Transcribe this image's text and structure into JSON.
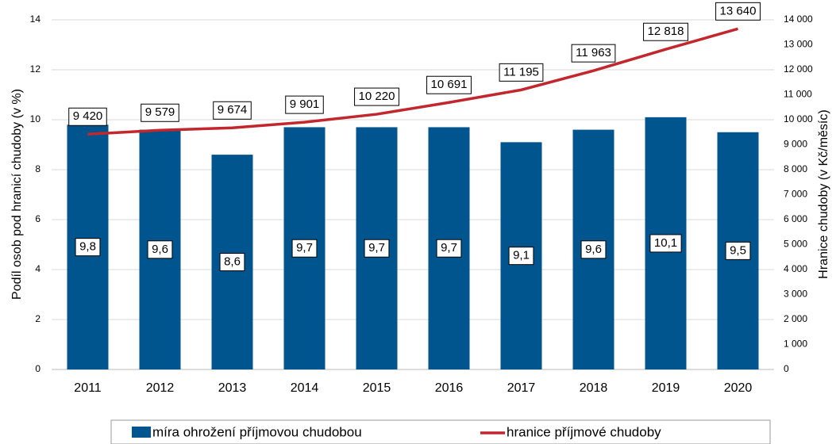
{
  "chart_data": {
    "type": "combo",
    "categories": [
      "2011",
      "2012",
      "2013",
      "2014",
      "2015",
      "2016",
      "2017",
      "2018",
      "2019",
      "2020"
    ],
    "y_label": "Podíl osob pod hranicí chudoby (v %)",
    "y2_label": "Hranice chudoby (v Kč/měsíc)",
    "ylim": [
      0,
      14
    ],
    "yticks": [
      0,
      2,
      4,
      6,
      8,
      10,
      12,
      14
    ],
    "y2lim": [
      0,
      14000
    ],
    "y2ticks": [
      0,
      {
        "value": 1000,
        "label": "1 000"
      },
      {
        "value": 2000,
        "label": "2 000"
      },
      {
        "value": 3000,
        "label": "3 000"
      },
      {
        "value": 4000,
        "label": "4 000"
      },
      {
        "value": 5000,
        "label": "5 000"
      },
      {
        "value": 6000,
        "label": "6 000"
      },
      {
        "value": 7000,
        "label": "7 000"
      },
      {
        "value": 8000,
        "label": "8 000"
      },
      {
        "value": 9000,
        "label": "9 000"
      },
      {
        "value": 10000,
        "label": "10 000"
      },
      {
        "value": 11000,
        "label": "11 000"
      },
      {
        "value": 12000,
        "label": "12 000"
      },
      {
        "value": 13000,
        "label": "13 000"
      },
      {
        "value": 14000,
        "label": "14 000"
      }
    ],
    "grid": true,
    "legend": "bottom",
    "series": [
      {
        "name": "míra ohrožení příjmovou chudobou",
        "type": "bar",
        "color": "#00558e",
        "values": [
          9.8,
          9.6,
          8.6,
          9.7,
          9.7,
          9.7,
          9.1,
          9.6,
          10.1,
          9.5
        ],
        "value_labels": [
          "9,8",
          "9,6",
          "8,6",
          "9,7",
          "9,7",
          "9,7",
          "9,1",
          "9,6",
          "10,1",
          "9,5"
        ]
      },
      {
        "name": "hranice příjmové chudoby",
        "type": "line",
        "axis": "y2",
        "color": "#c1272d",
        "values": [
          9420,
          9579,
          9674,
          9901,
          10220,
          10691,
          11195,
          11963,
          12818,
          13640
        ],
        "value_labels": [
          "9 420",
          "9 579",
          "9 674",
          "9 901",
          "10 220",
          "10 691",
          "11 195",
          "11 963",
          "12 818",
          "13 640"
        ]
      }
    ]
  }
}
